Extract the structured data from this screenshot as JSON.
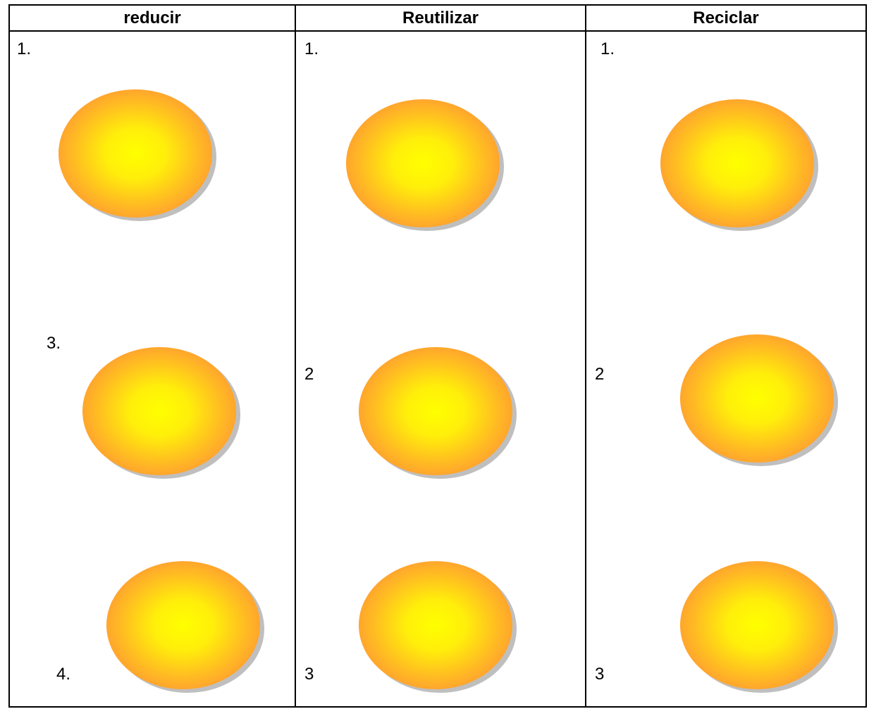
{
  "table": {
    "headers": [
      "reducir",
      "Reutilizar",
      "Reciclar"
    ],
    "columns": [
      {
        "labels": [
          "1.",
          "3.",
          "4."
        ]
      },
      {
        "labels": [
          "1.",
          "2",
          "3"
        ]
      },
      {
        "labels": [
          "1.",
          "2",
          "3"
        ]
      }
    ]
  },
  "bubble_colors": {
    "center": "#ffff00",
    "edge": "#ff9a33",
    "shadow": "#bfbfbf"
  }
}
